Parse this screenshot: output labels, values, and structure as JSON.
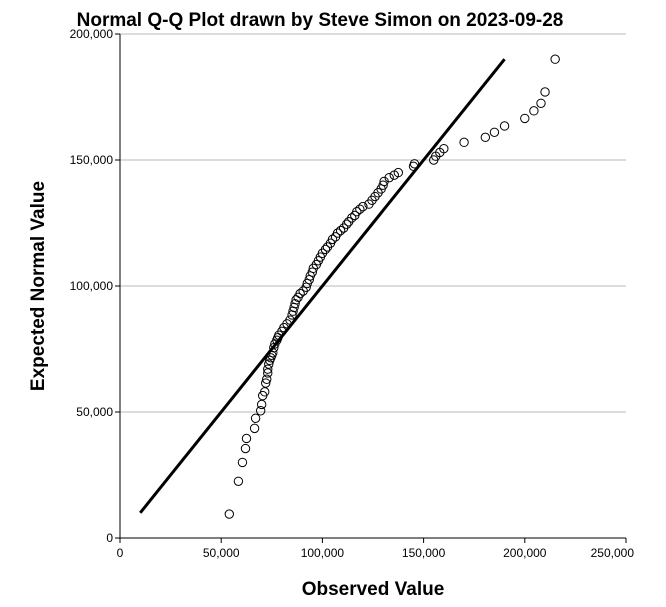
{
  "chart_data": {
    "type": "scatter",
    "title": "Normal Q-Q Plot drawn by Steve Simon on 2023-09-28",
    "xlabel": "Observed Value",
    "ylabel": "Expected Normal Value",
    "xlim": [
      0,
      250000
    ],
    "ylim": [
      0,
      200000
    ],
    "xticks": [
      0,
      50000,
      100000,
      150000,
      200000,
      250000
    ],
    "xtick_labels": [
      "0",
      "50,000",
      "100,000",
      "150,000",
      "200,000",
      "250,000"
    ],
    "yticks": [
      0,
      50000,
      100000,
      150000,
      200000
    ],
    "ytick_labels": [
      "0",
      "50,000",
      "100,000",
      "150,000",
      "200,000"
    ],
    "grid": {
      "horizontal": true,
      "vertical": false
    },
    "reference_line": {
      "x": [
        10000,
        190000
      ],
      "y": [
        10000,
        190000
      ]
    },
    "points": [
      [
        54000,
        9500
      ],
      [
        58500,
        22500
      ],
      [
        60500,
        30000
      ],
      [
        62000,
        35500
      ],
      [
        62500,
        39500
      ],
      [
        66500,
        43500
      ],
      [
        67000,
        47500
      ],
      [
        69500,
        50500
      ],
      [
        70000,
        53000
      ],
      [
        70500,
        56500
      ],
      [
        71500,
        58000
      ],
      [
        72000,
        61500
      ],
      [
        72500,
        63000
      ],
      [
        73000,
        65500
      ],
      [
        73000,
        67000
      ],
      [
        73500,
        69000
      ],
      [
        74000,
        70500
      ],
      [
        74500,
        71500
      ],
      [
        75000,
        72500
      ],
      [
        75500,
        73500
      ],
      [
        76000,
        75500
      ],
      [
        76500,
        77000
      ],
      [
        77500,
        78500
      ],
      [
        78000,
        79500
      ],
      [
        78500,
        80500
      ],
      [
        80000,
        82000
      ],
      [
        81000,
        83500
      ],
      [
        82500,
        85000
      ],
      [
        84000,
        86500
      ],
      [
        85000,
        88500
      ],
      [
        85500,
        90000
      ],
      [
        86000,
        91500
      ],
      [
        86500,
        93000
      ],
      [
        87000,
        94500
      ],
      [
        88000,
        95500
      ],
      [
        89000,
        97000
      ],
      [
        90500,
        98000
      ],
      [
        92000,
        99500
      ],
      [
        92500,
        101000
      ],
      [
        93500,
        102500
      ],
      [
        94000,
        104000
      ],
      [
        95000,
        105500
      ],
      [
        95500,
        107000
      ],
      [
        97000,
        108500
      ],
      [
        98000,
        110000
      ],
      [
        99000,
        111500
      ],
      [
        100000,
        113000
      ],
      [
        101500,
        114500
      ],
      [
        102500,
        115500
      ],
      [
        104000,
        117000
      ],
      [
        105000,
        118500
      ],
      [
        106500,
        119500
      ],
      [
        107500,
        121000
      ],
      [
        109000,
        122000
      ],
      [
        110500,
        123000
      ],
      [
        112000,
        124500
      ],
      [
        113000,
        125500
      ],
      [
        114500,
        127000
      ],
      [
        116000,
        128000
      ],
      [
        117000,
        129500
      ],
      [
        118500,
        130500
      ],
      [
        120000,
        131500
      ],
      [
        123000,
        132500
      ],
      [
        124500,
        134000
      ],
      [
        126000,
        135500
      ],
      [
        127500,
        137000
      ],
      [
        129000,
        138500
      ],
      [
        130000,
        140000
      ],
      [
        130500,
        141500
      ],
      [
        133000,
        143000
      ],
      [
        135500,
        144000
      ],
      [
        137500,
        145000
      ],
      [
        145000,
        147500
      ],
      [
        145500,
        148500
      ],
      [
        155000,
        150000
      ],
      [
        156000,
        151500
      ],
      [
        158000,
        153000
      ],
      [
        160000,
        154500
      ],
      [
        170000,
        157000
      ],
      [
        180500,
        159000
      ],
      [
        185000,
        161000
      ],
      [
        190000,
        163500
      ],
      [
        200000,
        166500
      ],
      [
        204500,
        169500
      ],
      [
        208000,
        172500
      ],
      [
        210000,
        177000
      ],
      [
        215000,
        190000
      ]
    ]
  }
}
